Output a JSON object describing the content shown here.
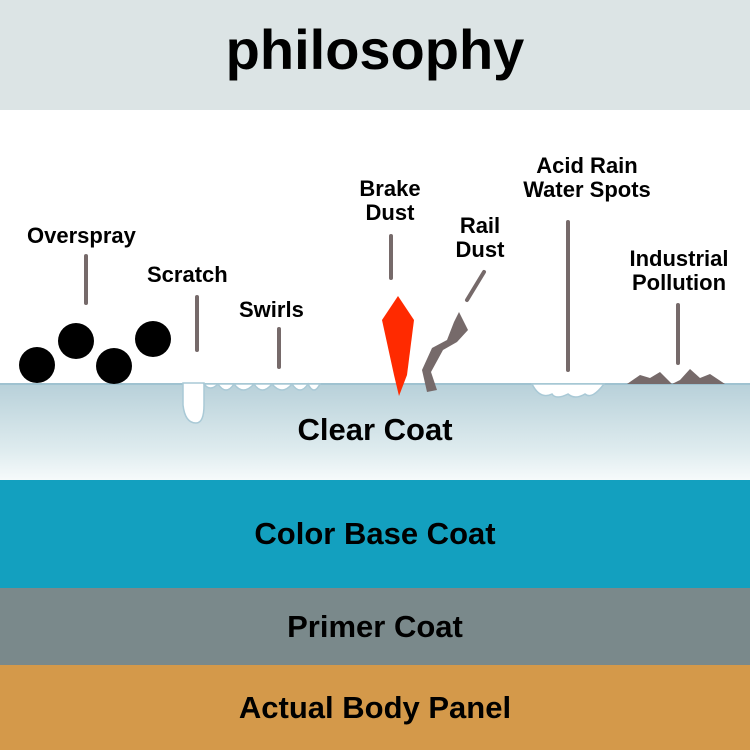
{
  "title": "philosophy",
  "layers": {
    "clear_coat": "Clear Coat",
    "color_base_coat": "Color Base Coat",
    "primer_coat": "Primer Coat",
    "body_panel": "Actual Body Panel"
  },
  "contaminants": {
    "overspray": "Overspray",
    "scratch": "Scratch",
    "swirls": "Swirls",
    "brake_dust": [
      "Brake",
      "Dust"
    ],
    "rail_dust": [
      "Rail",
      "Dust"
    ],
    "acid_rain": [
      "Acid Rain",
      "Water Spots"
    ],
    "industrial_pollution": [
      "Industrial",
      "Pollution"
    ]
  },
  "colors": {
    "header": "#dce4e5",
    "clear_coat": "#b7d0d9",
    "color_base_coat": "#13a0bf",
    "primer_coat": "#7a898b",
    "body_panel": "#d4994a",
    "brake_dust": "#ff2a00",
    "rail_dust": "#766a6a"
  }
}
